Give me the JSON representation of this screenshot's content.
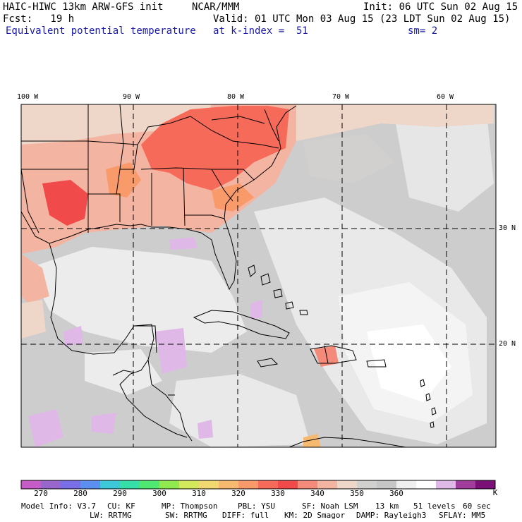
{
  "header": {
    "model": "HAIC-HIWC 13km ARW-GFS init",
    "org": "NCAR/MMM",
    "init": "Init: 06 UTC Sun 02 Aug 15",
    "fcst": "Fcst:   19 h",
    "valid": "Valid: 01 UTC Mon 03 Aug 15 (23 LDT Sun 02 Aug 15)",
    "field": "Equivalent potential temperature",
    "level": "at k-index =  51",
    "smooth": "sm= 2"
  },
  "map": {
    "lon_labels": [
      "100 W",
      "90 W",
      "80 W",
      "70 W",
      "60 W"
    ],
    "lat_labels": [
      "30 N",
      "20 N"
    ]
  },
  "colorbar": {
    "colors": [
      "#c75bc7",
      "#9966cc",
      "#7a6ee6",
      "#5b8ff0",
      "#3cc8d8",
      "#36dea8",
      "#4fe870",
      "#8fea50",
      "#d3e85a",
      "#f2d870",
      "#f7b870",
      "#f89a6a",
      "#f66a5a",
      "#f04a4a",
      "#f48a7a",
      "#f4b4a2",
      "#eed6c8",
      "#d2cfcf",
      "#c6c6c6",
      "#efefef",
      "#ffffff",
      "#e0b8e8",
      "#a03c9c",
      "#7a0f78"
    ],
    "labels": [
      "270",
      "280",
      "290",
      "300",
      "310",
      "320",
      "330",
      "340",
      "350",
      "360"
    ],
    "unit": "K"
  },
  "footer": {
    "line1": [
      "Model Info: V3.7",
      "CU: KF",
      "MP: Thompson",
      "PBL: YSU",
      "SF: Noah LSM",
      "13 km",
      "51 levels",
      "60 sec"
    ],
    "line2": [
      "LW: RRTMG",
      "SW: RRTMG",
      "DIFF: full",
      "KM: 2D Smagor",
      "DAMP: Rayleigh3",
      "SFLAY: MM5"
    ]
  }
}
